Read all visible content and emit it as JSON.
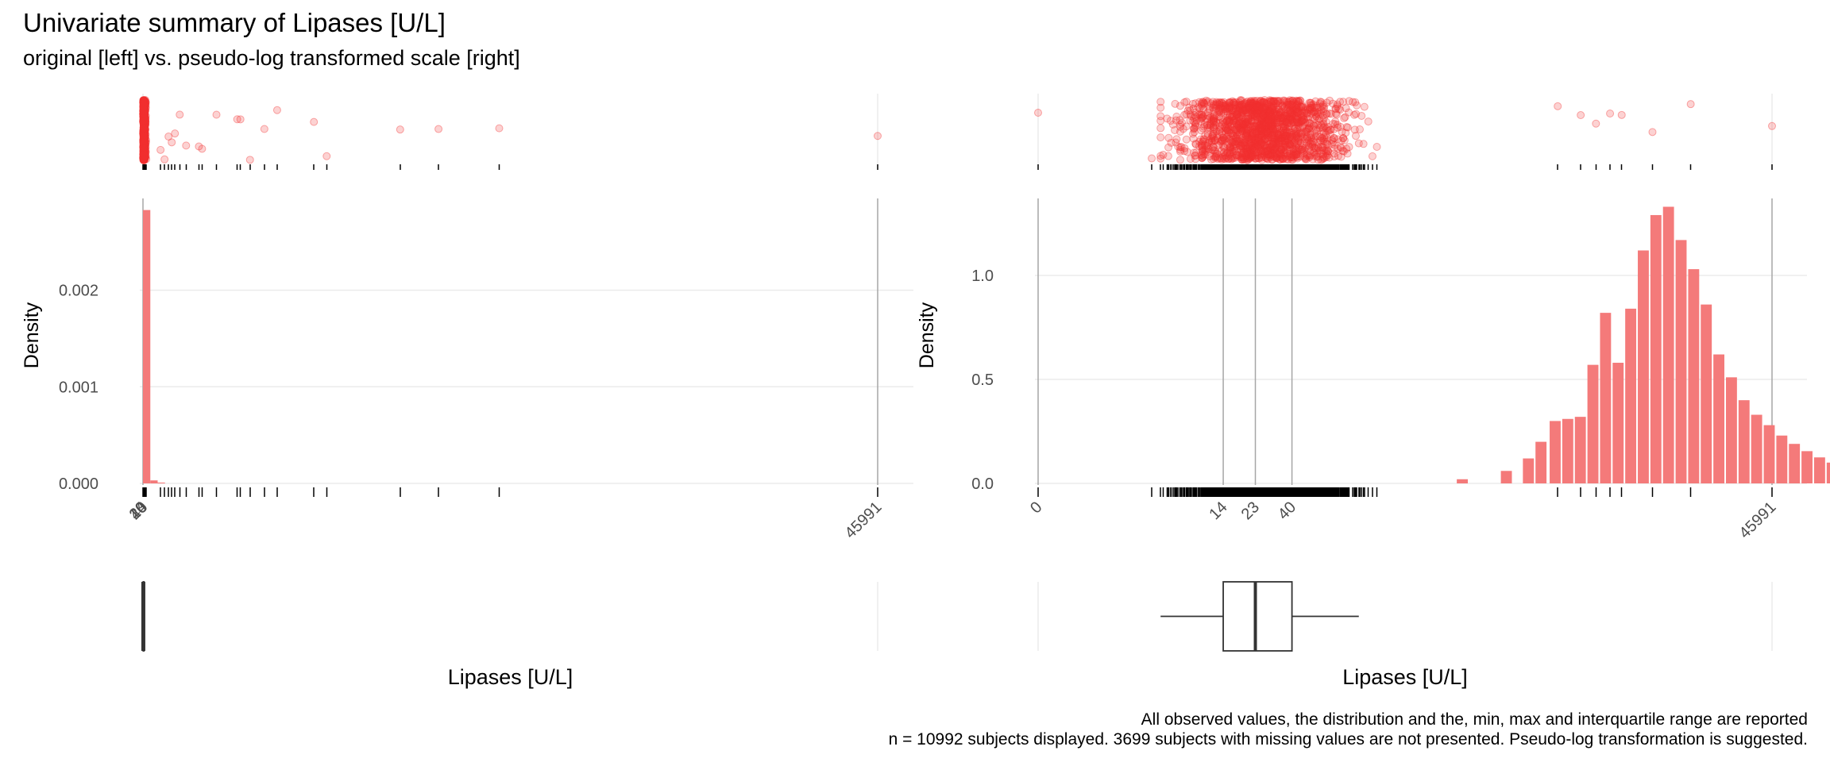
{
  "title": "Univariate summary of Lipases [U/L]",
  "subtitle": "original [left] vs. pseudo-log transformed scale [right]",
  "caption_line1": "All observed values, the distribution and the, min, max and interquartile range are reported",
  "caption_line2": "n = 10992 subjects displayed. 3699 subjects with missing values are not presented. Pseudo-log transformation is suggested.",
  "colors": {
    "points": "#F23030",
    "bars": "#F47A7A",
    "rug": "#000000",
    "grid": "#EBEBEB",
    "vline": "#A6A6A6",
    "box": "#333333"
  },
  "chart_data": [
    {
      "panel": "original",
      "type": "histogram",
      "xlabel": "Lipases [U/L]",
      "ylabel": "Density",
      "xlim": [
        0,
        45991
      ],
      "ylim": [
        0,
        0.00295
      ],
      "yticks": [
        0.0,
        0.001,
        0.002
      ],
      "ytick_labels": [
        "0.000",
        "0.001",
        "0.002"
      ],
      "xticks": [
        0,
        14,
        23,
        40,
        45991
      ],
      "xtick_labels": [
        "0",
        "14",
        "23",
        "40",
        "45991"
      ],
      "vlines": [
        0,
        45991
      ],
      "bins": {
        "width": 460,
        "x": [
          0,
          460,
          920
        ],
        "density": [
          0.00283,
          3.1e-05,
          8.5e-06
        ]
      },
      "outliers": [
        1100,
        1350,
        1600,
        1800,
        2000,
        2300,
        2700,
        3500,
        3700,
        4600,
        5900,
        6100,
        6700,
        7600,
        8400,
        10700,
        11500,
        16100,
        18500,
        22300,
        45991
      ],
      "box": {
        "min": 0,
        "q1": 14,
        "median": 23,
        "q3": 40,
        "max": 78
      },
      "marginal": "jittered observations with rug"
    },
    {
      "panel": "pseudo-log",
      "type": "histogram",
      "transform": "pseudo-log",
      "xlabel": "Lipases [U/L]",
      "ylabel": "Density",
      "xlim": [
        0,
        45991
      ],
      "ylim": [
        0,
        1.37
      ],
      "yticks": [
        0.0,
        0.5,
        1.0
      ],
      "ytick_labels": [
        "0.0",
        "0.5",
        "1.0"
      ],
      "xticks": [
        0,
        14,
        23,
        40,
        45991
      ],
      "xtick_labels": [
        "0",
        "14",
        "23",
        "40",
        "45991"
      ],
      "vlines": [
        0,
        14,
        23,
        40,
        45991
      ],
      "bins": {
        "x_log_start": [
          2.66,
          2.94,
          3.08,
          3.16,
          3.25,
          3.33,
          3.41,
          3.49,
          3.57,
          3.65,
          3.73,
          3.81,
          3.89,
          3.97,
          4.05,
          4.13,
          4.21,
          4.29,
          4.37,
          4.45,
          4.53,
          4.61,
          4.69,
          4.77,
          4.85,
          4.93,
          5.01,
          5.09,
          5.17,
          5.25,
          5.33,
          5.41,
          5.49,
          5.57,
          5.65,
          5.73,
          5.81,
          5.89,
          5.97,
          6.05,
          6.13,
          6.21,
          6.29,
          6.37,
          6.45
        ],
        "x_log_width": 0.075,
        "density": [
          0.02,
          0.06,
          0.12,
          0.2,
          0.3,
          0.31,
          0.32,
          0.57,
          0.82,
          0.58,
          0.84,
          1.12,
          1.29,
          1.33,
          1.17,
          1.03,
          0.86,
          0.62,
          0.51,
          0.4,
          0.33,
          0.28,
          0.23,
          0.19,
          0.155,
          0.125,
          0.1,
          0.08,
          0.065,
          0.05,
          0.04,
          0.034,
          0.03,
          0.024,
          0.02,
          0.016,
          0.012,
          0.01,
          0.008,
          0.006,
          0.005,
          0.004,
          0.003,
          0.002,
          0.0015
        ]
      },
      "box": {
        "min": 5,
        "q1": 14,
        "median": 23,
        "q3": 40,
        "max": 108
      },
      "marginal": "jittered observations with rug"
    }
  ]
}
